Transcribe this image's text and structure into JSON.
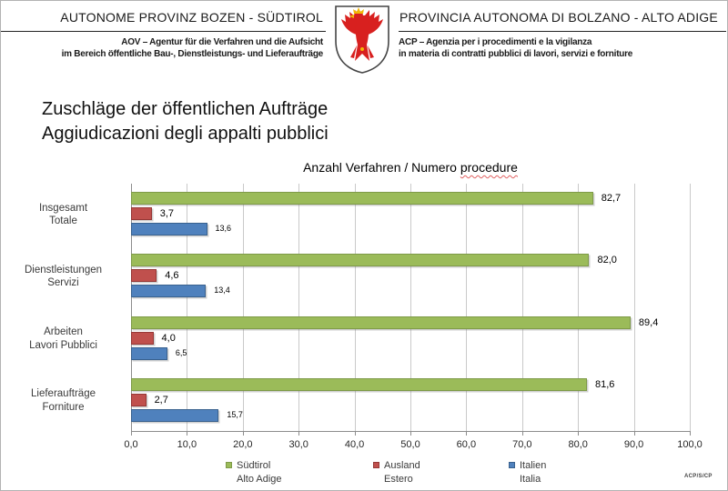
{
  "header": {
    "left": {
      "title": "AUTONOME PROVINZ BOZEN - SÜDTIROL",
      "subtitle_line1": "AOV – Agentur für die Verfahren und die Aufsicht",
      "subtitle_line2": "im Bereich öffentliche Bau-, Dienstleistungs- und Lieferaufträge"
    },
    "right": {
      "title": "PROVINCIA AUTONOMA DI BOLZANO - ALTO ADIGE",
      "subtitle_line1": "ACP – Agenzia per i procedimenti e la vigilanza",
      "subtitle_line2": "in materia di contratti pubblici di lavori, servizi e forniture"
    },
    "crest_icon": "tyrol-eagle-crest"
  },
  "page_title": {
    "line1": "Zuschläge der öffentlichen Aufträge",
    "line2": "Aggiudicazioni degli appalti pubblici"
  },
  "chart_data": {
    "type": "bar",
    "orientation": "horizontal",
    "title": "Anzahl Verfahren / Numero procedure",
    "title_prefix": "Anzahl Verfahren / Numero ",
    "title_underlined_word": "procedure",
    "categories": [
      [
        "Insgesamt",
        "Totale"
      ],
      [
        "Dienstleistungen",
        "Servizi"
      ],
      [
        "Arbeiten",
        "Lavori Pubblici"
      ],
      [
        "Lieferaufträge",
        "Forniture"
      ]
    ],
    "series": [
      {
        "name": "Südtirol",
        "name2": "Alto Adige",
        "color": "#9bbb59",
        "border": "#7e9a48",
        "values": [
          82.7,
          82.0,
          89.4,
          81.6
        ],
        "labels": [
          "82,7",
          "82,0",
          "89,4",
          "81,6"
        ]
      },
      {
        "name": "Ausland",
        "name2": "Estero",
        "color": "#c0504d",
        "border": "#953735",
        "values": [
          3.7,
          4.6,
          4.0,
          2.7
        ],
        "labels": [
          "3,7",
          "4,6",
          "4,0",
          "2,7"
        ]
      },
      {
        "name": "Italien",
        "name2": "Italia",
        "color": "#4f81bd",
        "border": "#39618e",
        "values": [
          13.6,
          13.4,
          6.5,
          15.7
        ],
        "labels": [
          "13,6",
          "13,4",
          "6,5",
          "15,7"
        ]
      }
    ],
    "x_ticks": [
      "0,0",
      "10,0",
      "20,0",
      "30,0",
      "40,0",
      "50,0",
      "60,0",
      "70,0",
      "80,0",
      "90,0",
      "100,0"
    ],
    "xlim": [
      0,
      100
    ],
    "xlabel": "",
    "ylabel": "",
    "grid": true,
    "legend_position": "bottom"
  },
  "footer": {
    "code": "ACP/S/CP"
  }
}
